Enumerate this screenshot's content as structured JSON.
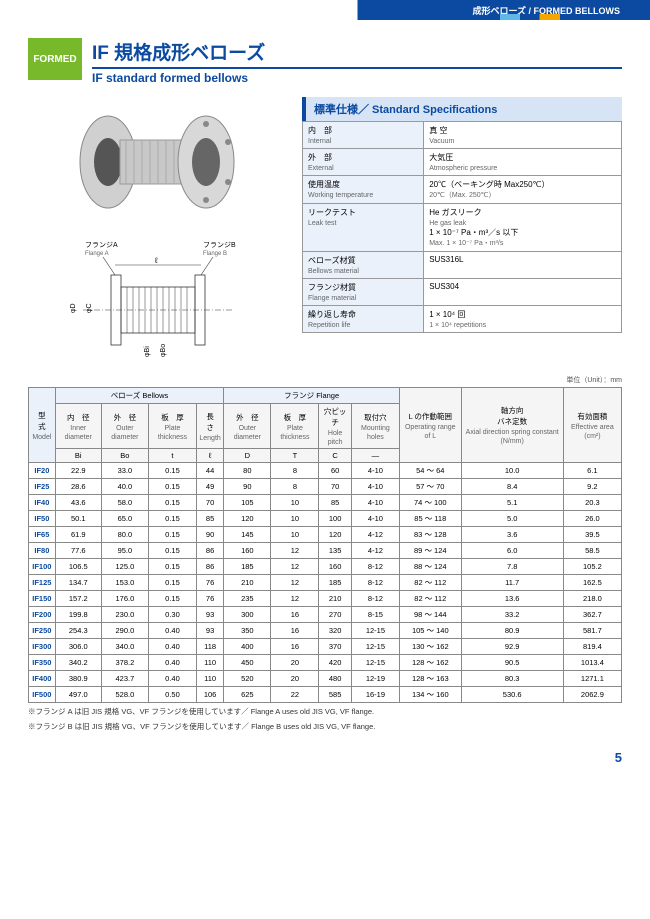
{
  "topbar": {
    "text": "成形ベローズ / FORMED BELLOWS"
  },
  "badge": "FORMED",
  "title_jp": "IF 規格成形ベローズ",
  "title_en": "IF standard formed bellows",
  "diagram_labels": {
    "flangeA_jp": "フランジA",
    "flangeA_en": "Flange A",
    "flangeB_jp": "フランジB",
    "flangeB_en": "Flange B",
    "L": "ℓ",
    "D": "φD",
    "C": "φC",
    "Bi": "φBi",
    "Bo": "φBo"
  },
  "spec_header": "標準仕様／ Standard Specifications",
  "specs": [
    {
      "k_jp": "内　部",
      "k_en": "Internal",
      "v_jp": "真 空",
      "v_en": "Vacuum"
    },
    {
      "k_jp": "外　部",
      "k_en": "External",
      "v_jp": "大気圧",
      "v_en": "Atmospheric pressure"
    },
    {
      "k_jp": "使用温度",
      "k_en": "Working temperature",
      "v_jp": "20℃（ベーキング時 Max250℃）",
      "v_en": "20℃（Max. 250℃）"
    },
    {
      "k_jp": "リークテスト",
      "k_en": "Leak test",
      "v_jp": "He ガスリーク",
      "v_en": "He gas leak",
      "v2": "1 × 10⁻⁷ Pa・m³／s 以下",
      "v3": "Max. 1 × 10⁻⁷ Pa・m³/s"
    },
    {
      "k_jp": "ベローズ材質",
      "k_en": "Bellows material",
      "v_jp": "SUS316L",
      "v_en": ""
    },
    {
      "k_jp": "フランジ材質",
      "k_en": "Flange material",
      "v_jp": "SUS304",
      "v_en": ""
    },
    {
      "k_jp": "繰り返し寿命",
      "k_en": "Repetition life",
      "v_jp": "1 × 10⁴ 回",
      "v_en": "1 × 10⁴ repetitions"
    }
  ],
  "unit_note": "単位（Unit）：mm",
  "headers": {
    "model_jp": "型　式",
    "model_en": "Model",
    "bellows": "ベローズ Bellows",
    "flange": "フランジ Flange",
    "bi_jp": "内　径",
    "bi_en": "Inner diameter",
    "bi_sym": "Bi",
    "bo_jp": "外　径",
    "bo_en": "Outer diameter",
    "bo_sym": "Bo",
    "t_jp": "板　厚",
    "t_en": "Plate thickness",
    "t_sym": "t",
    "l_jp": "長　さ",
    "l_en": "Length",
    "l_sym": "ℓ",
    "d_jp": "外　径",
    "d_en": "Outer diameter",
    "d_sym": "D",
    "ft_jp": "板　厚",
    "ft_en": "Plate thickness",
    "ft_sym": "T",
    "c_jp": "穴ピッチ",
    "c_en": "Hole pitch",
    "c_sym": "C",
    "mh_jp": "取付穴",
    "mh_en": "Mounting holes",
    "mh_sym": "—",
    "range_jp": "L の作動範囲",
    "range_en": "Operating range of L",
    "spring_jp": "軸方向\nバネ定数",
    "spring_en": "Axial direction spring constant (N/mm)",
    "area_jp": "有効面積",
    "area_en": "Effective area (cm²)"
  },
  "rows": [
    {
      "m": "IF20",
      "bi": "22.9",
      "bo": "33.0",
      "t": "0.15",
      "l": "44",
      "d": "80",
      "ft": "8",
      "c": "60",
      "mh": "4-10",
      "r": "54 ～ 64",
      "s": "10.0",
      "a": "6.1"
    },
    {
      "m": "IF25",
      "bi": "28.6",
      "bo": "40.0",
      "t": "0.15",
      "l": "49",
      "d": "90",
      "ft": "8",
      "c": "70",
      "mh": "4-10",
      "r": "57 ～ 70",
      "s": "8.4",
      "a": "9.2"
    },
    {
      "m": "IF40",
      "bi": "43.6",
      "bo": "58.0",
      "t": "0.15",
      "l": "70",
      "d": "105",
      "ft": "10",
      "c": "85",
      "mh": "4-10",
      "r": "74 ～ 100",
      "s": "5.1",
      "a": "20.3"
    },
    {
      "m": "IF50",
      "bi": "50.1",
      "bo": "65.0",
      "t": "0.15",
      "l": "85",
      "d": "120",
      "ft": "10",
      "c": "100",
      "mh": "4-10",
      "r": "85 ～ 118",
      "s": "5.0",
      "a": "26.0"
    },
    {
      "m": "IF65",
      "bi": "61.9",
      "bo": "80.0",
      "t": "0.15",
      "l": "90",
      "d": "145",
      "ft": "10",
      "c": "120",
      "mh": "4-12",
      "r": "83 ～ 128",
      "s": "3.6",
      "a": "39.5"
    },
    {
      "m": "IF80",
      "bi": "77.6",
      "bo": "95.0",
      "t": "0.15",
      "l": "86",
      "d": "160",
      "ft": "12",
      "c": "135",
      "mh": "4-12",
      "r": "89 ～ 124",
      "s": "6.0",
      "a": "58.5"
    },
    {
      "m": "IF100",
      "bi": "106.5",
      "bo": "125.0",
      "t": "0.15",
      "l": "86",
      "d": "185",
      "ft": "12",
      "c": "160",
      "mh": "8-12",
      "r": "88 ～ 124",
      "s": "7.8",
      "a": "105.2"
    },
    {
      "m": "IF125",
      "bi": "134.7",
      "bo": "153.0",
      "t": "0.15",
      "l": "76",
      "d": "210",
      "ft": "12",
      "c": "185",
      "mh": "8-12",
      "r": "82 ～ 112",
      "s": "11.7",
      "a": "162.5"
    },
    {
      "m": "IF150",
      "bi": "157.2",
      "bo": "176.0",
      "t": "0.15",
      "l": "76",
      "d": "235",
      "ft": "12",
      "c": "210",
      "mh": "8-12",
      "r": "82 ～ 112",
      "s": "13.6",
      "a": "218.0"
    },
    {
      "m": "IF200",
      "bi": "199.8",
      "bo": "230.0",
      "t": "0.30",
      "l": "93",
      "d": "300",
      "ft": "16",
      "c": "270",
      "mh": "8-15",
      "r": "98 ～ 144",
      "s": "33.2",
      "a": "362.7"
    },
    {
      "m": "IF250",
      "bi": "254.3",
      "bo": "290.0",
      "t": "0.40",
      "l": "93",
      "d": "350",
      "ft": "16",
      "c": "320",
      "mh": "12-15",
      "r": "105 ～ 140",
      "s": "80.9",
      "a": "581.7"
    },
    {
      "m": "IF300",
      "bi": "306.0",
      "bo": "340.0",
      "t": "0.40",
      "l": "118",
      "d": "400",
      "ft": "16",
      "c": "370",
      "mh": "12-15",
      "r": "130 ～ 162",
      "s": "92.9",
      "a": "819.4"
    },
    {
      "m": "IF350",
      "bi": "340.2",
      "bo": "378.2",
      "t": "0.40",
      "l": "110",
      "d": "450",
      "ft": "20",
      "c": "420",
      "mh": "12-15",
      "r": "128 ～ 162",
      "s": "90.5",
      "a": "1013.4"
    },
    {
      "m": "IF400",
      "bi": "380.9",
      "bo": "423.7",
      "t": "0.40",
      "l": "110",
      "d": "520",
      "ft": "20",
      "c": "480",
      "mh": "12-19",
      "r": "128 ～ 163",
      "s": "80.3",
      "a": "1271.1"
    },
    {
      "m": "IF500",
      "bi": "497.0",
      "bo": "528.0",
      "t": "0.50",
      "l": "106",
      "d": "625",
      "ft": "22",
      "c": "585",
      "mh": "16-19",
      "r": "134 ～ 160",
      "s": "530.6",
      "a": "2062.9"
    }
  ],
  "footnote1": "※フランジ A は旧 JIS 規格 VG、VF フランジを使用しています／ Flange A uses old JIS VG, VF flange.",
  "footnote2": "※フランジ B は旧 JIS 規格 VG、VF フランジを使用しています／ Flange B uses old JIS VG, VF flange.",
  "pagenum": "5"
}
